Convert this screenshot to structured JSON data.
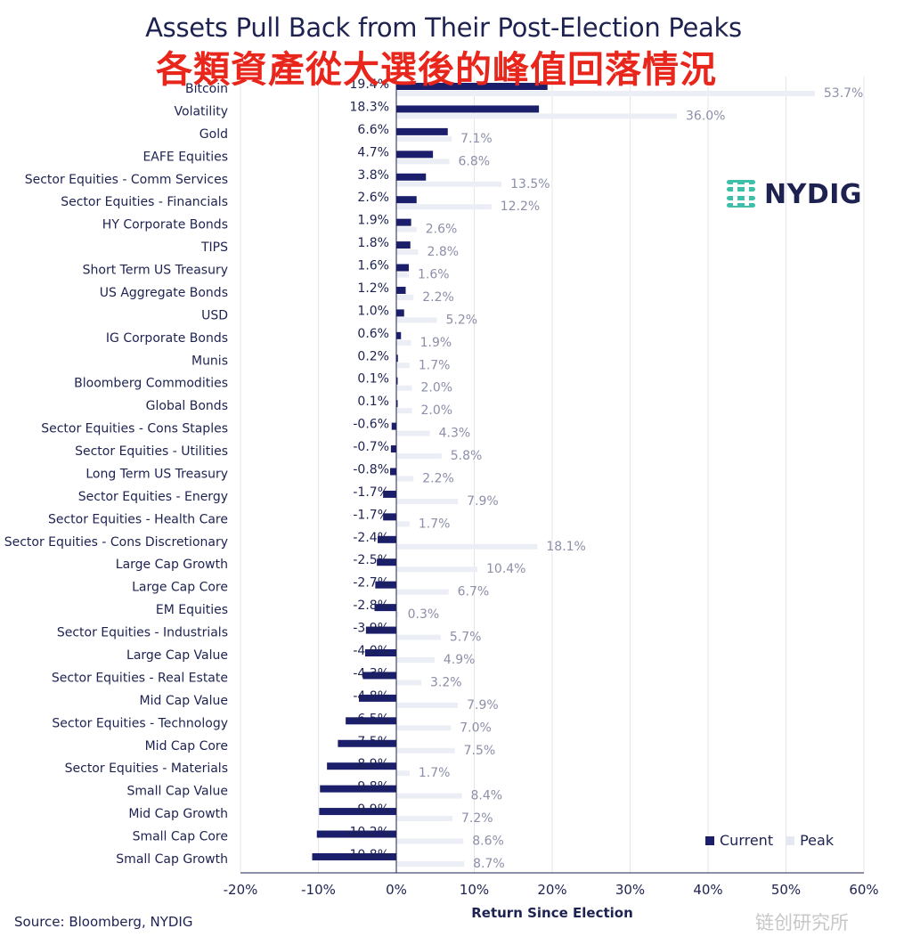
{
  "title": "Assets Pull Back from Their Post-Election Peaks",
  "subtitle": "各類資產從大選後的峰值回落情況",
  "source": "Source: Bloomberg, NYDIG",
  "brand": "NYDIG",
  "watermark": "链创研究所",
  "colors": {
    "current": "#1b1f6b",
    "peak": "#eceef5",
    "grid": "#e4e5ea",
    "text": "#1d2250",
    "subtitle": "#e8261c",
    "logo": "#3dbfa9"
  },
  "chart_data": {
    "type": "bar",
    "orientation": "horizontal",
    "title": "Assets Pull Back from Their Post-Election Peaks",
    "xlabel": "Return Since Election",
    "ylabel": "",
    "xlim": [
      -20,
      60
    ],
    "xticks": [
      -20,
      -10,
      0,
      10,
      20,
      30,
      40,
      50,
      60
    ],
    "xtick_labels": [
      "-20%",
      "-10%",
      "0%",
      "10%",
      "20%",
      "30%",
      "40%",
      "50%",
      "60%"
    ],
    "grid": true,
    "legend": {
      "position": "bottom-right",
      "entries": [
        "Current",
        "Peak"
      ]
    },
    "categories": [
      "Bitcoin",
      "Volatility",
      "Gold",
      "EAFE Equities",
      "Sector Equities - Comm Services",
      "Sector Equities - Financials",
      "HY Corporate Bonds",
      "TIPS",
      "Short Term US Treasury",
      "US Aggregate Bonds",
      "USD",
      "IG Corporate Bonds",
      "Munis",
      "Bloomberg Commodities",
      "Global Bonds",
      "Sector Equities - Cons Staples",
      "Sector Equities - Utilities",
      "Long Term US Treasury",
      "Sector Equities - Energy",
      "Sector Equities - Health Care",
      "Sector Equities - Cons Discretionary",
      "Large Cap Growth",
      "Large Cap Core",
      "EM Equities",
      "Sector Equities - Industrials",
      "Large Cap Value",
      "Sector Equities - Real Estate",
      "Mid Cap Value",
      "Sector Equities - Technology",
      "Mid Cap Core",
      "Sector Equities - Materials",
      "Small Cap Value",
      "Mid Cap Growth",
      "Small Cap Core",
      "Small Cap Growth"
    ],
    "series": [
      {
        "name": "Current",
        "values": [
          19.4,
          18.3,
          6.6,
          4.7,
          3.8,
          2.6,
          1.9,
          1.8,
          1.6,
          1.2,
          1.0,
          0.6,
          0.2,
          0.1,
          0.1,
          -0.6,
          -0.7,
          -0.8,
          -1.7,
          -1.7,
          -2.4,
          -2.5,
          -2.7,
          -2.8,
          -3.9,
          -4.0,
          -4.3,
          -4.8,
          -6.5,
          -7.5,
          -8.9,
          -9.8,
          -9.9,
          -10.2,
          -10.8
        ],
        "labels": [
          "19.4%",
          "18.3%",
          "6.6%",
          "4.7%",
          "3.8%",
          "2.6%",
          "1.9%",
          "1.8%",
          "1.6%",
          "1.2%",
          "1.0%",
          "0.6%",
          "0.2%",
          "0.1%",
          "0.1%",
          "-0.6%",
          "-0.7%",
          "-0.8%",
          "-1.7%",
          "-1.7%",
          "-2.4%",
          "-2.5%",
          "-2.7%",
          "-2.8%",
          "-3.9%",
          "-4.0%",
          "-4.3%",
          "-4.8%",
          "-6.5%",
          "-7.5%",
          "-8.9%",
          "-9.8%",
          "-9.9%",
          "-10.2%",
          "-10.8%"
        ]
      },
      {
        "name": "Peak",
        "values": [
          53.7,
          36.0,
          7.1,
          6.8,
          13.5,
          12.2,
          2.6,
          2.8,
          1.6,
          2.2,
          5.2,
          1.9,
          1.7,
          2.0,
          2.0,
          4.3,
          5.8,
          2.2,
          7.9,
          1.7,
          18.1,
          10.4,
          6.7,
          0.3,
          5.7,
          4.9,
          3.2,
          7.9,
          7.0,
          7.5,
          1.7,
          8.4,
          7.2,
          8.6,
          8.7
        ],
        "labels": [
          "53.7%",
          "36.0%",
          "7.1%",
          "6.8%",
          "13.5%",
          "12.2%",
          "2.6%",
          "2.8%",
          "1.6%",
          "2.2%",
          "5.2%",
          "1.9%",
          "1.7%",
          "2.0%",
          "2.0%",
          "4.3%",
          "5.8%",
          "2.2%",
          "7.9%",
          "1.7%",
          "18.1%",
          "10.4%",
          "6.7%",
          "0.3%",
          "5.7%",
          "4.9%",
          "3.2%",
          "7.9%",
          "7.0%",
          "7.5%",
          "1.7%",
          "8.4%",
          "7.2%",
          "8.6%",
          "8.7%"
        ]
      }
    ]
  }
}
